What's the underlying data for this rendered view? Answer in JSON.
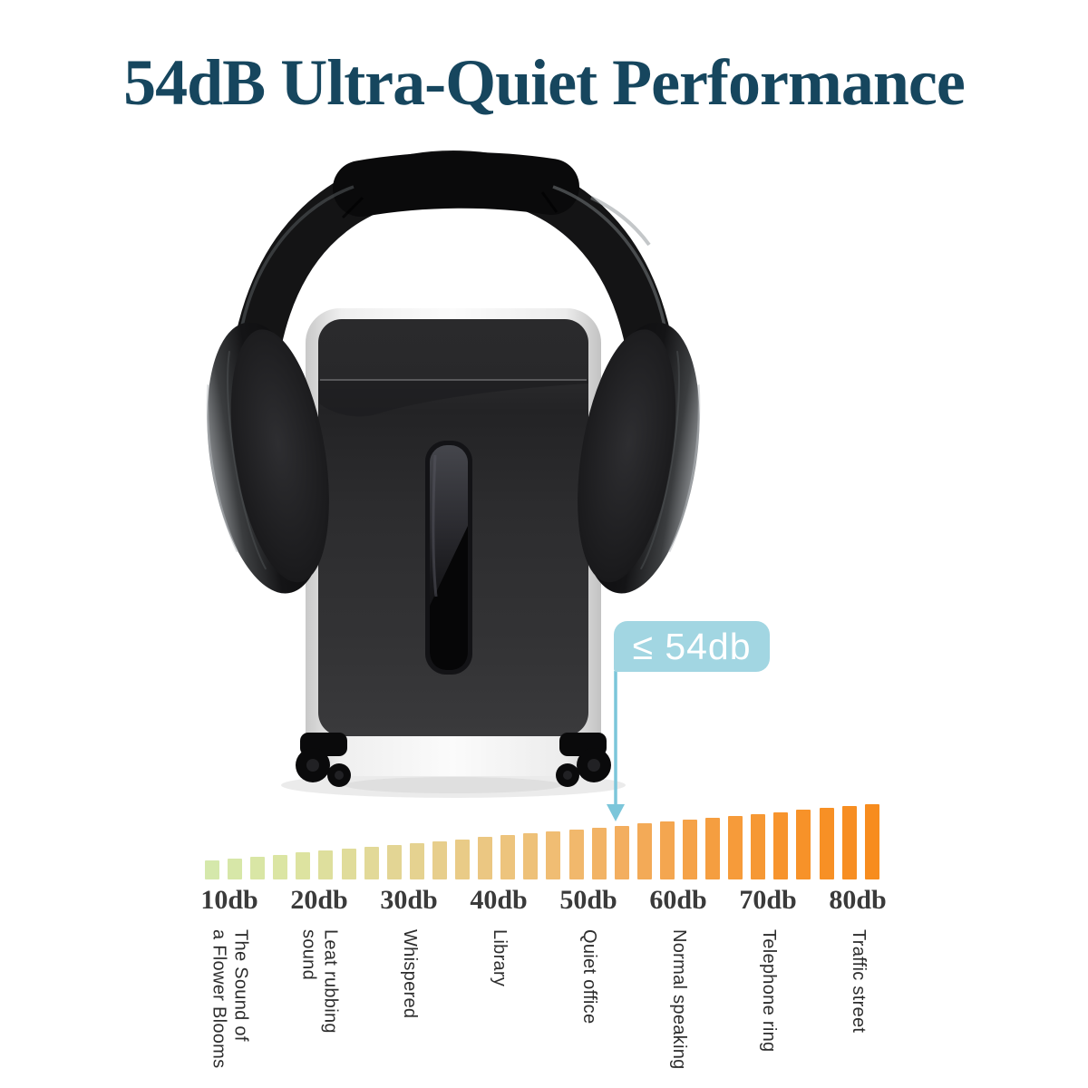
{
  "title": {
    "text": "54dB Ultra-Quiet Performance",
    "color": "#16465e"
  },
  "callout": {
    "label": "≤ 54db",
    "bg_color": "#a2d6e2",
    "text_color": "#ffffff",
    "arrow_color": "#7cc6da"
  },
  "illustration": {
    "description": "Paper shredder wearing over-ear headphones"
  },
  "chart_data": {
    "type": "bar",
    "title": "",
    "xlabel": "",
    "ylabel": "",
    "legend": "none",
    "grid": false,
    "categories": [
      "10db",
      "20db",
      "30db",
      "40db",
      "50db",
      "60db",
      "70db",
      "80db"
    ],
    "category_descriptions": [
      "The Sound of\na Flower Blooms",
      "Leat rubbing\nsound",
      "Whispered",
      "Library",
      "Quiet office",
      "Normal speaking",
      "Telephone ring",
      "Traffic street"
    ],
    "bars": {
      "count": 30,
      "relative_heights": [
        21,
        23,
        25,
        27,
        30,
        32,
        34,
        36,
        38,
        40,
        42,
        44,
        47,
        49,
        51,
        53,
        55,
        57,
        59,
        62,
        64,
        66,
        68,
        70,
        72,
        74,
        77,
        79,
        81,
        83
      ]
    },
    "highlight": {
      "annotation": "≤ 54db",
      "points_between": [
        "50db",
        "60db"
      ],
      "value_db": 54
    },
    "color_stops": [
      "#d5e8ab",
      "#dce4a1",
      "#e2d897",
      "#e9cb88",
      "#efbf76",
      "#f3ad5e",
      "#f59f42",
      "#f7932b",
      "#f78c1e"
    ],
    "tick_label_color": "#3a3a3a",
    "desc_label_color": "#2d2d2d"
  }
}
